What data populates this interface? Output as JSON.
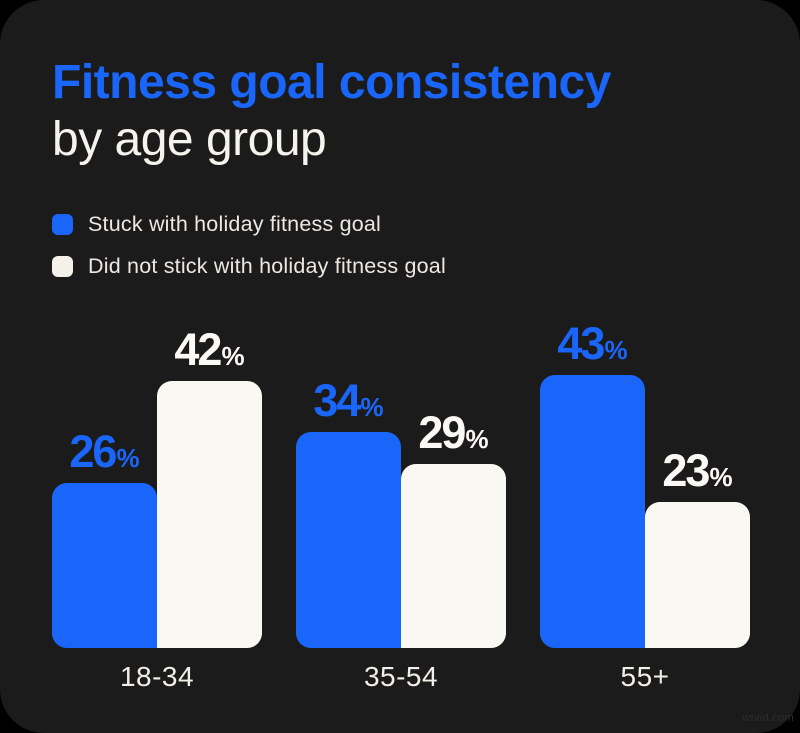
{
  "title": {
    "line1": "Fitness goal consistency",
    "line2": "by age group"
  },
  "legend": {
    "items": [
      {
        "label": "Stuck with holiday fitness goal",
        "color": "#1a66fa"
      },
      {
        "label": "Did not stick with holiday fitness goal",
        "color": "#f4f1ea"
      }
    ]
  },
  "chart_data": {
    "type": "bar",
    "title": "Fitness goal consistency by age group",
    "categories": [
      "18-34",
      "35-54",
      "55+"
    ],
    "series": [
      {
        "name": "Stuck with holiday fitness goal",
        "color": "#1a66fa",
        "label_color": "#1a66fa",
        "values": [
          26,
          34,
          43
        ]
      },
      {
        "name": "Did not stick with holiday fitness goal",
        "color": "#faf8f3",
        "label_color": "#fbf9f5",
        "values": [
          42,
          29,
          23
        ]
      }
    ],
    "value_suffix": "%",
    "ylim": [
      0,
      50
    ],
    "grid": false,
    "legend_position": "top-left",
    "orientation": "vertical"
  },
  "watermark": "wtvid.com",
  "colors": {
    "background": "#000000",
    "card": "#1b1b1b",
    "accent_blue": "#1a66fa",
    "off_white": "#f4f1ea",
    "category_label": "#f2efe9"
  }
}
